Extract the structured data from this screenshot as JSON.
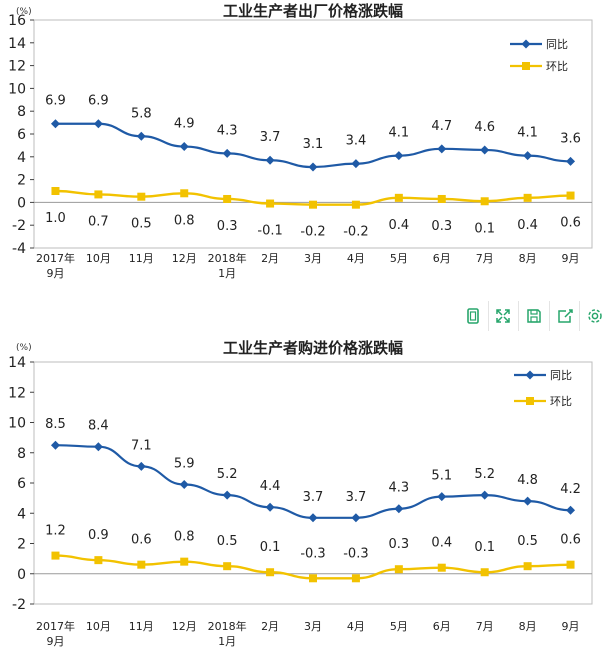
{
  "colors": {
    "yoy": "#1f5aa6",
    "mom": "#f2c200",
    "axis": "#404040",
    "border": "#bdbdbd",
    "toolbar_icon": "#27a56b"
  },
  "toolbar": {
    "icons": [
      "single-page-icon",
      "fullscreen-icon",
      "save-icon",
      "share-icon",
      "settings-icon"
    ]
  },
  "chart_data": [
    {
      "type": "line",
      "title": "工业生产者出厂价格涨跌幅",
      "unit_label": "(%)",
      "categories": [
        [
          "2017年",
          "9月"
        ],
        [
          "10月"
        ],
        [
          "11月"
        ],
        [
          "12月"
        ],
        [
          "2018年",
          "1月"
        ],
        [
          "2月"
        ],
        [
          "3月"
        ],
        [
          "4月"
        ],
        [
          "5月"
        ],
        [
          "6月"
        ],
        [
          "7月"
        ],
        [
          "8月"
        ],
        [
          "9月"
        ]
      ],
      "ylim": [
        -4,
        16
      ],
      "yticks": [
        -4,
        -2,
        0,
        2,
        4,
        6,
        8,
        10,
        12,
        14,
        16
      ],
      "series": [
        {
          "name": "同比",
          "marker": "diamond",
          "values": [
            6.9,
            6.9,
            5.8,
            4.9,
            4.3,
            3.7,
            3.1,
            3.4,
            4.1,
            4.7,
            4.6,
            4.1,
            3.6
          ],
          "labels": [
            "6.9",
            "6.9",
            "5.8",
            "4.9",
            "4.3",
            "3.7",
            "3.1",
            "3.4",
            "4.1",
            "4.7",
            "4.6",
            "4.1",
            "3.6"
          ]
        },
        {
          "name": "环比",
          "marker": "square",
          "values": [
            1.0,
            0.7,
            0.5,
            0.8,
            0.3,
            -0.1,
            -0.2,
            -0.2,
            0.4,
            0.3,
            0.1,
            0.4,
            0.6
          ],
          "labels": [
            "1.0",
            "0.7",
            "0.5",
            "0.8",
            "0.3",
            "-0.1",
            "-0.2",
            "-0.2",
            "0.4",
            "0.3",
            "0.1",
            "0.4",
            "0.6"
          ]
        }
      ]
    },
    {
      "type": "line",
      "title": "工业生产者购进价格涨跌幅",
      "unit_label": "(%)",
      "categories": [
        [
          "2017年",
          "9月"
        ],
        [
          "10月"
        ],
        [
          "11月"
        ],
        [
          "12月"
        ],
        [
          "2018年",
          "1月"
        ],
        [
          "2月"
        ],
        [
          "3月"
        ],
        [
          "4月"
        ],
        [
          "5月"
        ],
        [
          "6月"
        ],
        [
          "7月"
        ],
        [
          "8月"
        ],
        [
          "9月"
        ]
      ],
      "ylim": [
        -2,
        14
      ],
      "yticks": [
        -2,
        0,
        2,
        4,
        6,
        8,
        10,
        12,
        14
      ],
      "series": [
        {
          "name": "同比",
          "marker": "diamond",
          "values": [
            8.5,
            8.4,
            7.1,
            5.9,
            5.2,
            4.4,
            3.7,
            3.7,
            4.3,
            5.1,
            5.2,
            4.8,
            4.2
          ],
          "labels": [
            "8.5",
            "8.4",
            "7.1",
            "5.9",
            "5.2",
            "4.4",
            "3.7",
            "3.7",
            "4.3",
            "5.1",
            "5.2",
            "4.8",
            "4.2"
          ]
        },
        {
          "name": "环比",
          "marker": "square",
          "values": [
            1.2,
            0.9,
            0.6,
            0.8,
            0.5,
            0.1,
            -0.3,
            -0.3,
            0.3,
            0.4,
            0.1,
            0.5,
            0.6
          ],
          "labels": [
            "1.2",
            "0.9",
            "0.6",
            "0.8",
            "0.5",
            "0.1",
            "-0.3",
            "-0.3",
            "0.3",
            "0.4",
            "0.1",
            "0.5",
            "0.6"
          ]
        }
      ]
    }
  ]
}
